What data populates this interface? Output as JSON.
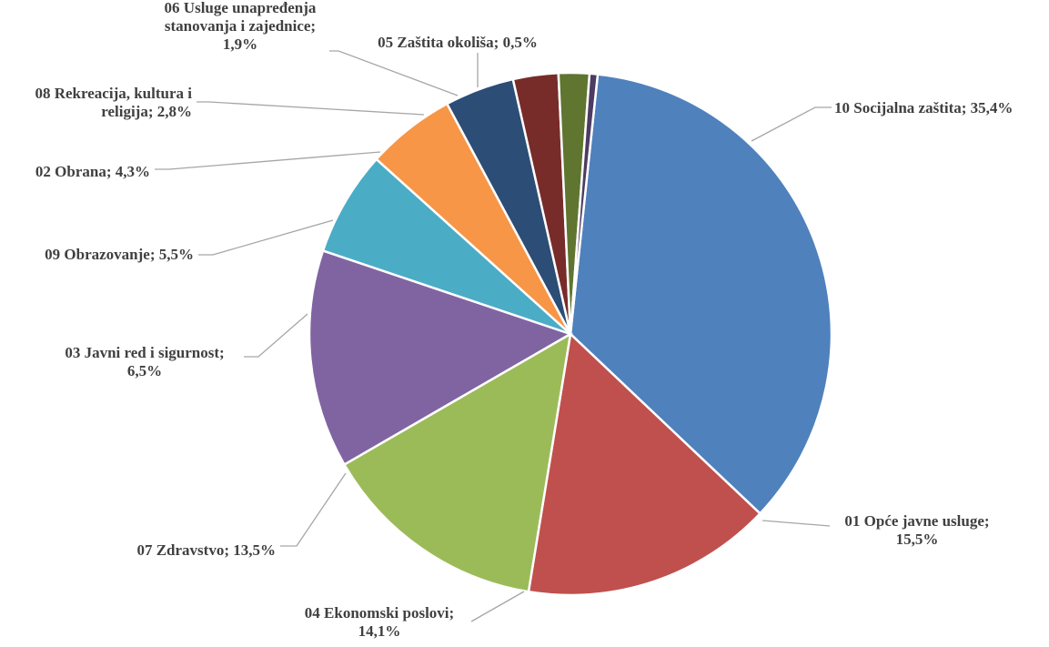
{
  "chart_data": {
    "type": "pie",
    "slices": [
      {
        "name": "10 Socijalna zaštita",
        "value": 35.4,
        "color": "#4f81bd",
        "label_lines": [
          "10 Socijalna zaštita; 35,4%"
        ]
      },
      {
        "name": "01 Opće javne usluge",
        "value": 15.5,
        "color": "#c0504d",
        "label_lines": [
          "01 Opće javne usluge;",
          "15,5%"
        ]
      },
      {
        "name": "04 Ekonomski poslovi",
        "value": 14.1,
        "color": "#9bbb59",
        "label_lines": [
          "04 Ekonomski poslovi;",
          "14,1%"
        ]
      },
      {
        "name": "07 Zdravstvo",
        "value": 13.5,
        "color": "#8064a2",
        "label_lines": [
          "07 Zdravstvo; 13,5%"
        ]
      },
      {
        "name": "03 Javni red i sigurnost",
        "value": 6.5,
        "color": "#4bacc6",
        "label_lines": [
          "03 Javni red i sigurnost;",
          "6,5%"
        ]
      },
      {
        "name": "09 Obrazovanje",
        "value": 5.5,
        "color": "#f79646",
        "label_lines": [
          "09 Obrazovanje; 5,5%"
        ]
      },
      {
        "name": "02 Obrana",
        "value": 4.3,
        "color": "#2c4d75",
        "label_lines": [
          "02 Obrana;  4,3%"
        ]
      },
      {
        "name": "08 Rekreacija, kultura i religija",
        "value": 2.8,
        "color": "#772c2a",
        "label_lines": [
          "08 Rekreacija, kultura  i",
          "religija;  2,8%"
        ]
      },
      {
        "name": "06 Usluge unapređenja stanovanja i zajednice",
        "value": 1.9,
        "color": "#5f7530",
        "label_lines": [
          "06 Usluge unapređenja",
          "stanovanja i zajednice;",
          "1,9%"
        ]
      },
      {
        "name": "05 Zaštita okoliša",
        "value": 0.5,
        "color": "#4d3b62",
        "label_lines": [
          "05 Zaštita okoliša; 0,5%"
        ]
      }
    ]
  }
}
